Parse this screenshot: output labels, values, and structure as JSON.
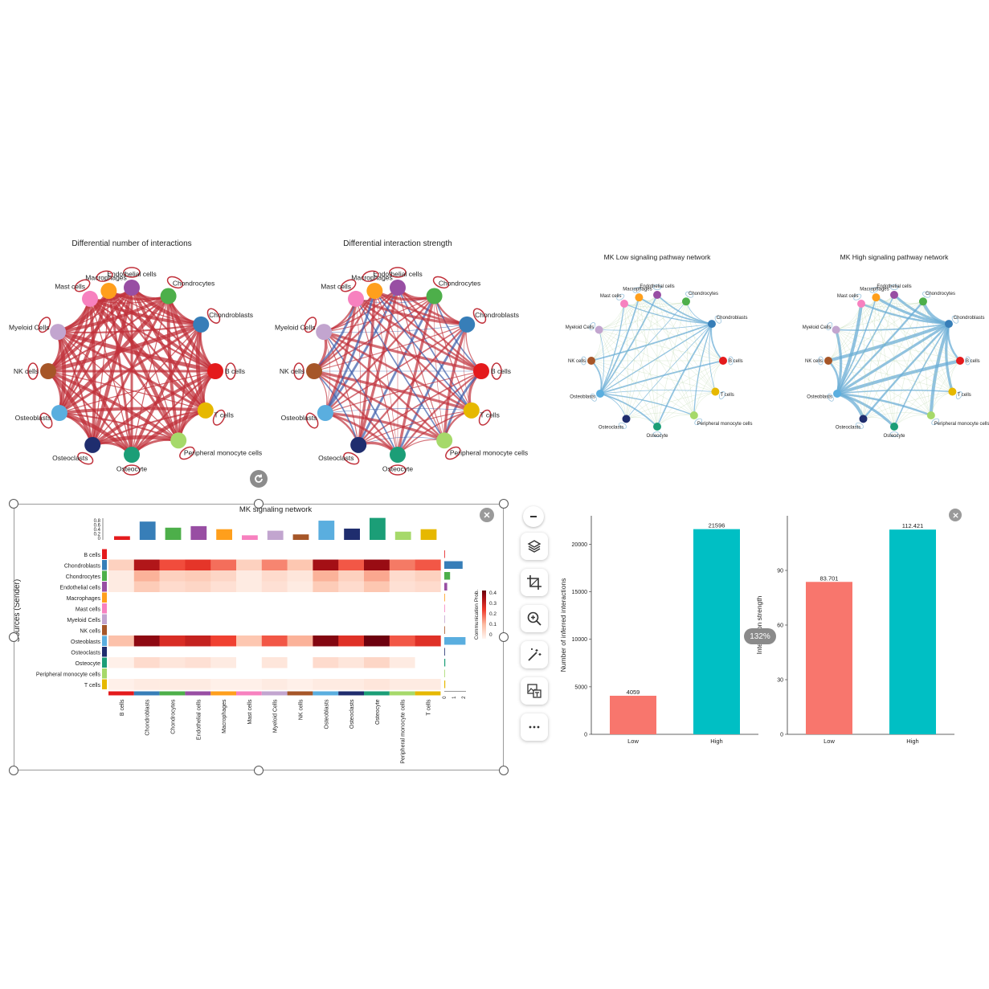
{
  "chart_data": [
    {
      "type": "network",
      "title": "Differential number of interactions",
      "nodes": [
        "Endothelial cells",
        "Chondrocytes",
        "Chondroblasts",
        "B cells",
        "T cells",
        "Peripheral monocyte cells",
        "Osteocyte",
        "Osteoclasts",
        "Osteoblasts",
        "NK cells",
        "Myeloid Cells",
        "Mast cells",
        "Macrophages"
      ],
      "node_colors": [
        "#984EA3",
        "#4DAF4A",
        "#377EB8",
        "#E41A1C",
        "#E6B800",
        "#A6D96A",
        "#1B9E77",
        "#1F2D6E",
        "#5AAEDF",
        "#A65628",
        "#C2A5CF",
        "#F781BF",
        "#FF9F1C"
      ],
      "edge_color": "#C0303A"
    },
    {
      "type": "network",
      "title": "Differential interaction strength",
      "nodes": [
        "Endothelial cells",
        "Chondrocytes",
        "Chondroblasts",
        "B cells",
        "T cells",
        "Peripheral monocyte cells",
        "Osteocyte",
        "Osteoclasts",
        "Osteoblasts",
        "NK cells",
        "Myeloid Cells",
        "Mast cells",
        "Macrophages"
      ],
      "node_colors": [
        "#984EA3",
        "#4DAF4A",
        "#377EB8",
        "#E41A1C",
        "#E6B800",
        "#A6D96A",
        "#1B9E77",
        "#1F2D6E",
        "#5AAEDF",
        "#A65628",
        "#C2A5CF",
        "#F781BF",
        "#FF9F1C"
      ],
      "edge_colors": [
        "#C0303A",
        "#3B5BA9"
      ]
    },
    {
      "type": "network",
      "title": "MK Low signaling pathway network",
      "nodes": [
        "Endothelial cells",
        "Chondrocytes",
        "Chondroblasts",
        "B cells",
        "T cells",
        "Peripheral monocyte cells",
        "Osteocyte",
        "Osteoclasts",
        "Osteoblasts",
        "NK cells",
        "Myeloid Cells",
        "Mast cells",
        "Macrophages"
      ],
      "edge_color": "#6BAED6"
    },
    {
      "type": "network",
      "title": "MK High signaling pathway network",
      "nodes": [
        "Endothelial cells",
        "Chondrocytes",
        "Chondroblasts",
        "B cells",
        "T cells",
        "Peripheral monocyte cells",
        "Osteocyte",
        "Osteoclasts",
        "Osteoblasts",
        "NK cells",
        "Myeloid Cells",
        "Mast cells",
        "Macrophages"
      ],
      "edge_color": "#6BAED6"
    },
    {
      "type": "heatmap",
      "title": "MK signaling network",
      "ylabel": "Sources (Sender)",
      "rows": [
        "B cells",
        "Chondroblasts",
        "Chondrocytes",
        "Endothelial cells",
        "Macrophages",
        "Mast cells",
        "Myeloid Cells",
        "NK cells",
        "Osteoblasts",
        "Osteoclasts",
        "Osteocyte",
        "Peripheral monocyte cells",
        "T cells"
      ],
      "cols": [
        "B cells",
        "Chondroblasts",
        "Chondrocytes",
        "Endothelial cells",
        "Macrophages",
        "Mast cells",
        "Myeloid Cells",
        "NK cells",
        "Osteoblasts",
        "Osteoclasts",
        "Osteocyte",
        "Peripheral monocyte cells",
        "T cells"
      ],
      "values": [
        [
          0,
          0,
          0,
          0,
          0,
          0,
          0,
          0,
          0,
          0,
          0,
          0,
          0
        ],
        [
          0.07,
          0.32,
          0.21,
          0.24,
          0.18,
          0.07,
          0.16,
          0.09,
          0.34,
          0.2,
          0.36,
          0.17,
          0.2
        ],
        [
          0.02,
          0.12,
          0.07,
          0.08,
          0.06,
          0.02,
          0.05,
          0.03,
          0.12,
          0.07,
          0.13,
          0.05,
          0.07
        ],
        [
          0.02,
          0.08,
          0.05,
          0.06,
          0.04,
          0.02,
          0.04,
          0.02,
          0.08,
          0.05,
          0.09,
          0.04,
          0.05
        ],
        [
          0,
          0,
          0,
          0,
          0,
          0,
          0,
          0,
          0,
          0,
          0,
          0,
          0
        ],
        [
          0,
          0,
          0,
          0,
          0,
          0,
          0,
          0,
          0,
          0,
          0,
          0,
          0
        ],
        [
          0,
          0,
          0,
          0,
          0,
          0,
          0,
          0,
          0,
          0,
          0,
          0,
          0
        ],
        [
          0,
          0,
          0,
          0,
          0,
          0,
          0,
          0,
          0,
          0,
          0,
          0,
          0
        ],
        [
          0.1,
          0.38,
          0.26,
          0.29,
          0.22,
          0.09,
          0.2,
          0.12,
          0.4,
          0.25,
          0.44,
          0.2,
          0.25
        ],
        [
          0,
          0,
          0,
          0,
          0,
          0,
          0,
          0,
          0,
          0,
          0,
          0,
          0
        ],
        [
          0.01,
          0.05,
          0.03,
          0.04,
          0.02,
          0,
          0.03,
          0,
          0.05,
          0.03,
          0.06,
          0.02,
          0
        ],
        [
          0,
          0,
          0,
          0,
          0,
          0,
          0,
          0,
          0,
          0,
          0,
          0,
          0
        ],
        [
          0.01,
          0.02,
          0.02,
          0.02,
          0.01,
          0.01,
          0.02,
          0.01,
          0.02,
          0.02,
          0.03,
          0.02,
          0.02
        ]
      ],
      "row_colors": [
        "#E41A1C",
        "#377EB8",
        "#4DAF4A",
        "#984EA3",
        "#FF9F1C",
        "#F781BF",
        "#C2A5CF",
        "#A65628",
        "#5AAEDF",
        "#1F2D6E",
        "#1B9E77",
        "#A6D96A",
        "#E6B800"
      ],
      "col_totals": [
        0.12,
        0.6,
        0.4,
        0.45,
        0.35,
        0.15,
        0.3,
        0.18,
        0.63,
        0.37,
        0.72,
        0.27,
        0.35
      ],
      "col_axis_ticks": [
        "0.8",
        "0.6",
        "0.4",
        "0.2",
        "0"
      ],
      "row_totals": [
        0,
        1.9,
        0.6,
        0.3,
        0,
        0,
        0,
        0,
        2.2,
        0,
        0.1,
        0,
        0.1
      ],
      "row_axis_ticks": [
        "0",
        "1",
        "2"
      ],
      "legend_title": "Communication Prob.",
      "legend_ticks": [
        "0.4",
        "0.3",
        "0.2",
        "0.1",
        "0"
      ]
    },
    {
      "type": "bar",
      "categories": [
        "Low",
        "High"
      ],
      "values": [
        4059,
        21596
      ],
      "value_labels": [
        "4059",
        "21596"
      ],
      "colors": [
        "#F8766D",
        "#00BFC4"
      ],
      "xlabel": "",
      "ylabel": "Number of inferred interactions",
      "yticks": [
        "0",
        "5000",
        "10000",
        "15000",
        "20000"
      ],
      "ylim": [
        0,
        23000
      ]
    },
    {
      "type": "bar",
      "categories": [
        "Low",
        "High"
      ],
      "values": [
        83.701,
        112.421
      ],
      "value_labels": [
        "83.701",
        "112.421"
      ],
      "colors": [
        "#F8766D",
        "#00BFC4"
      ],
      "xlabel": "",
      "ylabel": "Interaction strength",
      "yticks": [
        "0",
        "30",
        "60",
        "90"
      ],
      "ylim": [
        0,
        120
      ]
    }
  ],
  "ui": {
    "zoom_level": "132%",
    "toolbar": [
      "collapse",
      "layers",
      "crop",
      "zoom-in",
      "magic-edit",
      "image-to-text",
      "more"
    ]
  }
}
